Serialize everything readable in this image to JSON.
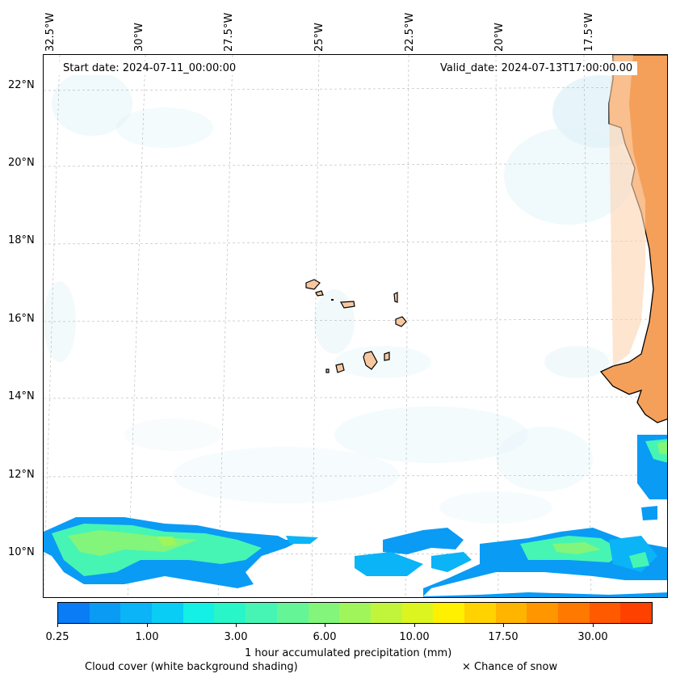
{
  "map": {
    "start_date": "Start date: 2024-07-11_00:00:00",
    "valid_date": "Valid_date: 2024-07-13T17:00:00.00",
    "longitude_labels": [
      "32.5°W",
      "30°W",
      "27.5°W",
      "25°W",
      "22.5°W",
      "20°W",
      "17.5°W"
    ],
    "latitude_labels": [
      "22°N",
      "20°N",
      "18°N",
      "16°N",
      "14°N",
      "12°N",
      "10°N"
    ]
  },
  "colorbar": {
    "label": "1 hour accumulated precipitation (mm)",
    "tick_labels": [
      "0.25",
      "1.00",
      "3.00",
      "6.00",
      "10.00",
      "17.50",
      "30.00"
    ],
    "colors": [
      "#0a7cf5",
      "#0a9bf5",
      "#0ab4f7",
      "#0acdf5",
      "#14f0e6",
      "#28f5c8",
      "#46f5b4",
      "#64f596",
      "#82f57a",
      "#a0f55a",
      "#c0f53c",
      "#dcf51e",
      "#fff000",
      "#ffd200",
      "#ffb400",
      "#ff9600",
      "#ff7800",
      "#ff5a00",
      "#ff4100"
    ]
  },
  "legend": {
    "cloud_cover": "Cloud cover (white background shading)",
    "snow": "× Chance of snow"
  },
  "colors": {
    "land": "#f5a05a",
    "island_fill": "#f7c8a0",
    "cloud_shade": "#d4eef5",
    "grid": "#b4b4b4"
  }
}
